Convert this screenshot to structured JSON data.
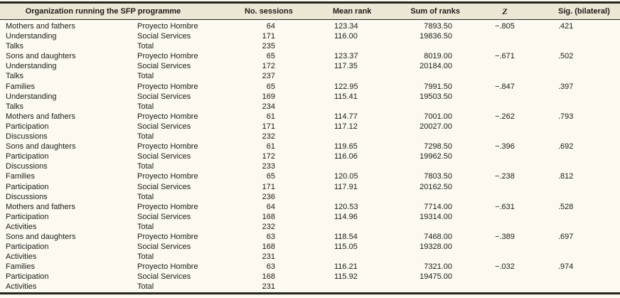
{
  "colors": {
    "header_background": "#ece6d5",
    "body_background": "#fbf9f0",
    "border": "#26251e",
    "text": "#1d1c18"
  },
  "table": {
    "headers": {
      "organization": "Organization running the SFP programme",
      "sessions": "No. sessions",
      "mean_rank": "Mean rank",
      "sum_ranks": "Sum of ranks",
      "z": "Z",
      "sig": "Sig. (bilateral)"
    },
    "groups": [
      {
        "label_lines": [
          "Mothers and fathers",
          "Understanding",
          "Talks"
        ],
        "rows": [
          {
            "org": "Proyecto Hombre",
            "sessions": "64",
            "mean_rank": "123.34",
            "sum_ranks": "7893.50",
            "z": "−.805",
            "sig": ".421"
          },
          {
            "org": "Social Services",
            "sessions": "171",
            "mean_rank": "116.00",
            "sum_ranks": "19836.50",
            "z": "",
            "sig": ""
          },
          {
            "org": "Total",
            "sessions": "235",
            "mean_rank": "",
            "sum_ranks": "",
            "z": "",
            "sig": ""
          }
        ]
      },
      {
        "label_lines": [
          "Sons and daughters",
          "Understanding",
          "Talks"
        ],
        "rows": [
          {
            "org": "Proyecto Hombre",
            "sessions": "65",
            "mean_rank": "123.37",
            "sum_ranks": "8019.00",
            "z": "−.671",
            "sig": ".502"
          },
          {
            "org": "Social Services",
            "sessions": "172",
            "mean_rank": "117.35",
            "sum_ranks": "20184.00",
            "z": "",
            "sig": ""
          },
          {
            "org": "Total",
            "sessions": "237",
            "mean_rank": "",
            "sum_ranks": "",
            "z": "",
            "sig": ""
          }
        ]
      },
      {
        "label_lines": [
          "Families",
          "Understanding",
          "Talks"
        ],
        "rows": [
          {
            "org": "Proyecto Hombre",
            "sessions": "65",
            "mean_rank": "122.95",
            "sum_ranks": "7991.50",
            "z": "−.847",
            "sig": ".397"
          },
          {
            "org": "Social Services",
            "sessions": "169",
            "mean_rank": "115.41",
            "sum_ranks": "19503.50",
            "z": "",
            "sig": ""
          },
          {
            "org": "Total",
            "sessions": "234",
            "mean_rank": "",
            "sum_ranks": "",
            "z": "",
            "sig": ""
          }
        ]
      },
      {
        "label_lines": [
          "Mothers and fathers",
          "Participation",
          "Discussions"
        ],
        "rows": [
          {
            "org": "Proyecto Hombre",
            "sessions": "61",
            "mean_rank": "114.77",
            "sum_ranks": "7001.00",
            "z": "−.262",
            "sig": ".793"
          },
          {
            "org": "Social Services",
            "sessions": "171",
            "mean_rank": "117.12",
            "sum_ranks": "20027.00",
            "z": "",
            "sig": ""
          },
          {
            "org": "Total",
            "sessions": "232",
            "mean_rank": "",
            "sum_ranks": "",
            "z": "",
            "sig": ""
          }
        ]
      },
      {
        "label_lines": [
          "Sons and daughters",
          "Participation",
          "Discussions"
        ],
        "rows": [
          {
            "org": "Proyecto Hombre",
            "sessions": "61",
            "mean_rank": "119.65",
            "sum_ranks": "7298.50",
            "z": "−.396",
            "sig": ".692"
          },
          {
            "org": "Social Services",
            "sessions": "172",
            "mean_rank": "116.06",
            "sum_ranks": "19962.50",
            "z": "",
            "sig": ""
          },
          {
            "org": "Total",
            "sessions": "233",
            "mean_rank": "",
            "sum_ranks": "",
            "z": "",
            "sig": ""
          }
        ]
      },
      {
        "label_lines": [
          "Families",
          "Participation",
          "Discussions"
        ],
        "rows": [
          {
            "org": "Proyecto Hombre",
            "sessions": "65",
            "mean_rank": "120.05",
            "sum_ranks": "7803.50",
            "z": "−.238",
            "sig": ".812"
          },
          {
            "org": "Social Services",
            "sessions": "171",
            "mean_rank": "117.91",
            "sum_ranks": "20162.50",
            "z": "",
            "sig": ""
          },
          {
            "org": "Total",
            "sessions": "236",
            "mean_rank": "",
            "sum_ranks": "",
            "z": "",
            "sig": ""
          }
        ]
      },
      {
        "label_lines": [
          "Mothers and fathers",
          "Participation",
          "Activities"
        ],
        "rows": [
          {
            "org": "Proyecto Hombre",
            "sessions": "64",
            "mean_rank": "120.53",
            "sum_ranks": "7714.00",
            "z": "−.631",
            "sig": ".528"
          },
          {
            "org": "Social Services",
            "sessions": "168",
            "mean_rank": "114.96",
            "sum_ranks": "19314.00",
            "z": "",
            "sig": ""
          },
          {
            "org": "Total",
            "sessions": "232",
            "mean_rank": "",
            "sum_ranks": "",
            "z": "",
            "sig": ""
          }
        ]
      },
      {
        "label_lines": [
          "Sons and daughters",
          "Participation",
          "Activities"
        ],
        "rows": [
          {
            "org": "Proyecto Hombre",
            "sessions": "63",
            "mean_rank": "118.54",
            "sum_ranks": "7468.00",
            "z": "−.389",
            "sig": ".697"
          },
          {
            "org": "Social Services",
            "sessions": "168",
            "mean_rank": "115.05",
            "sum_ranks": "19328.00",
            "z": "",
            "sig": ""
          },
          {
            "org": "Total",
            "sessions": "231",
            "mean_rank": "",
            "sum_ranks": "",
            "z": "",
            "sig": ""
          }
        ]
      },
      {
        "label_lines": [
          "Families",
          "Participation",
          "Activities"
        ],
        "rows": [
          {
            "org": "Proyecto Hombre",
            "sessions": "63",
            "mean_rank": "116.21",
            "sum_ranks": "7321.00",
            "z": "−.032",
            "sig": ".974"
          },
          {
            "org": "Social Services",
            "sessions": "168",
            "mean_rank": "115.92",
            "sum_ranks": "19475.00",
            "z": "",
            "sig": ""
          },
          {
            "org": "Total",
            "sessions": "231",
            "mean_rank": "",
            "sum_ranks": "",
            "z": "",
            "sig": ""
          }
        ]
      }
    ]
  }
}
